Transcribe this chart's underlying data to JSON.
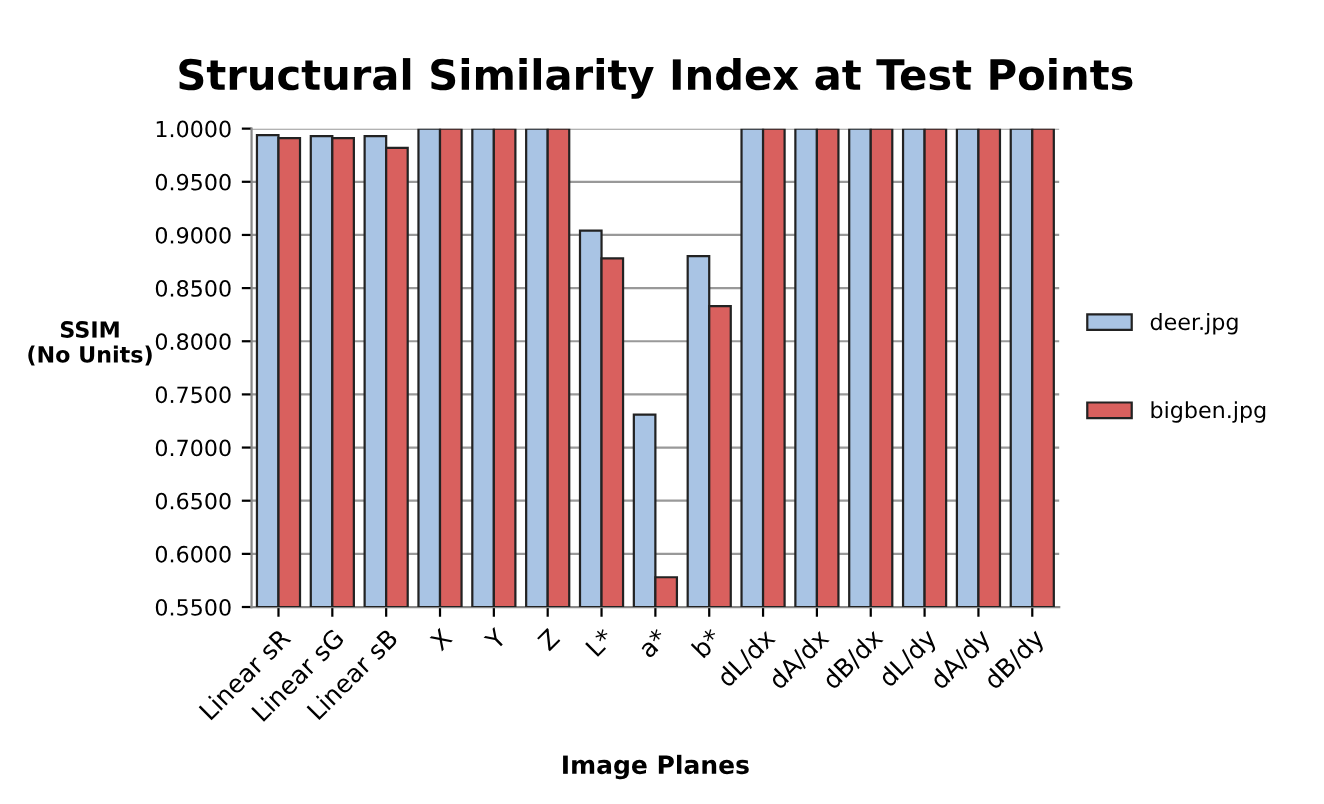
{
  "chart_data": {
    "type": "bar",
    "title": "Structural Similarity Index at Test Points",
    "xlabel": "Image Planes",
    "ylabel": "SSIM\n(No Units)",
    "categories": [
      "Linear sR",
      "Linear sG",
      "Linear sB",
      "X",
      "Y",
      "Z",
      "L*",
      "a*",
      "b*",
      "dL/dx",
      "dA/dx",
      "dB/dx",
      "dL/dy",
      "dA/dy",
      "dB/dy"
    ],
    "series": [
      {
        "name": "deer.jpg",
        "color": "#a9c4e4",
        "values": [
          0.994,
          0.993,
          0.993,
          1.0,
          1.0,
          1.0,
          0.904,
          0.731,
          0.88,
          1.0,
          1.0,
          1.0,
          1.0,
          1.0,
          1.0
        ]
      },
      {
        "name": "bigben.jpg",
        "color": "#d9605e",
        "values": [
          0.991,
          0.991,
          0.982,
          1.0,
          1.0,
          1.0,
          0.878,
          0.578,
          0.833,
          1.0,
          1.0,
          1.0,
          1.0,
          1.0,
          1.0
        ]
      }
    ],
    "ylim": [
      0.55,
      1.0
    ],
    "yticks": [
      {
        "value": 0.55,
        "label": "0.5500"
      },
      {
        "value": 0.6,
        "label": "0.6000"
      },
      {
        "value": 0.65,
        "label": "0.6500"
      },
      {
        "value": 0.7,
        "label": "0.7000"
      },
      {
        "value": 0.75,
        "label": "0.7500"
      },
      {
        "value": 0.8,
        "label": "0.8000"
      },
      {
        "value": 0.85,
        "label": "0.8500"
      },
      {
        "value": 0.9,
        "label": "0.9000"
      },
      {
        "value": 0.95,
        "label": "0.9500"
      },
      {
        "value": 1.0,
        "label": "1.0000"
      }
    ],
    "grid": "y",
    "legend": "right"
  }
}
